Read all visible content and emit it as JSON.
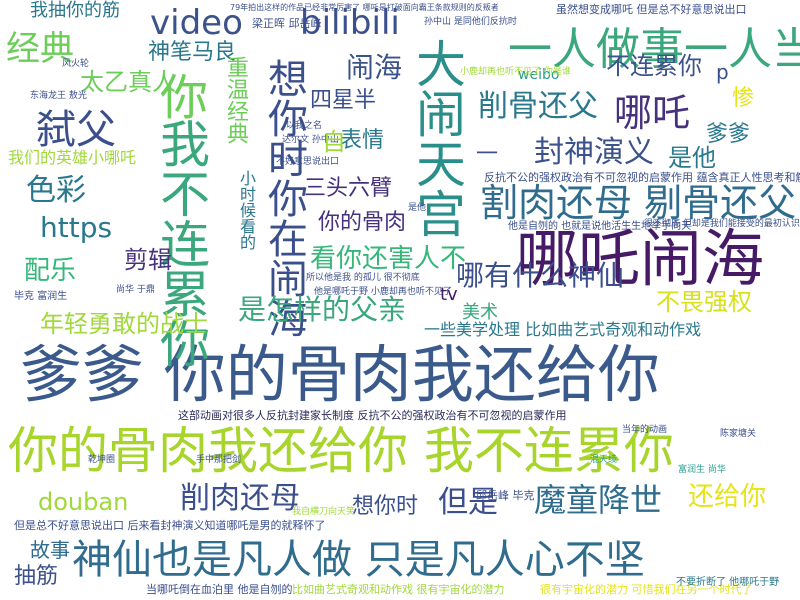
{
  "words": [
    {
      "text": "爹爹  你的骨肉我还给你",
      "color": "#3b5a8c"
    },
    {
      "text": "你的骨肉我还给你  我不连累你",
      "color": "#a8d52c"
    },
    {
      "text": "哪吒闹海",
      "color": "#461a66"
    },
    {
      "text": "大闹天宫",
      "color": "#2a8f8a"
    },
    {
      "text": "我不连累你",
      "color": "#3aa77c"
    },
    {
      "text": "神仙也是凡人做  只是凡人心不坚",
      "color": "#2f6c8e"
    },
    {
      "text": "想你时你在闹海",
      "color": "#3b4f8c"
    },
    {
      "text": "一人做事一人当",
      "color": "#3aa77c"
    },
    {
      "text": "割肉还母  剔骨还父",
      "color": "#2f6c8e"
    },
    {
      "text": "bilibili",
      "color": "#3b4f8c"
    },
    {
      "text": "video",
      "color": "#3b528b"
    },
    {
      "text": "哪吒",
      "color": "#46317e"
    },
    {
      "text": "弑父",
      "color": "#3b4f8c"
    },
    {
      "text": "经典",
      "color": "#6ccd59"
    },
    {
      "text": "你",
      "color": "#6ccd59"
    },
    {
      "text": "削骨还父",
      "color": "#2a788e"
    },
    {
      "text": "封神演义",
      "color": "#3b528b"
    },
    {
      "text": "魔童降世",
      "color": "#2f6c8e"
    },
    {
      "text": "削肉还母",
      "color": "#3b4f8c"
    },
    {
      "text": "是怎样的父亲",
      "color": "#3aa77c"
    },
    {
      "text": "年轻勇敢的战士",
      "color": "#a0d93a"
    },
    {
      "text": "看你还害人不",
      "color": "#35b779"
    },
    {
      "text": "哪有什么神仙",
      "color": "#3b4f8c"
    },
    {
      "text": "不畏强权",
      "color": "#d7e219"
    },
    {
      "text": "还给你",
      "color": "#e6e418"
    },
    {
      "text": "色彩",
      "color": "#2a788e"
    },
    {
      "text": "https",
      "color": "#2a788e"
    },
    {
      "text": "配乐",
      "color": "#35b779"
    },
    {
      "text": "剪辑",
      "color": "#46317e"
    },
    {
      "text": "神笔马良",
      "color": "#2a788e"
    },
    {
      "text": "太乙真人",
      "color": "#6ccd59"
    },
    {
      "text": "闹海",
      "color": "#3b528b"
    },
    {
      "text": "不连累你",
      "color": "#3b528b"
    },
    {
      "text": "四星半",
      "color": "#3b4f8c"
    },
    {
      "text": "表情",
      "color": "#2a788e"
    },
    {
      "text": "三头六臂",
      "color": "#46317e"
    },
    {
      "text": "你的骨肉",
      "color": "#46317e"
    },
    {
      "text": "是他",
      "color": "#2a788e"
    },
    {
      "text": "爹爹",
      "color": "#2a788e"
    },
    {
      "text": "惨",
      "color": "#e6e418"
    },
    {
      "text": "想你时",
      "color": "#3b4f8c"
    },
    {
      "text": "但是",
      "color": "#3b4f8c"
    },
    {
      "text": "douban",
      "color": "#a0d93a"
    },
    {
      "text": "故事",
      "color": "#2f6c8e"
    },
    {
      "text": "抽筋",
      "color": "#3b528b"
    },
    {
      "text": "我们的英雄小哪吒",
      "color": "#a0d93a"
    },
    {
      "text": "我抽你的筋",
      "color": "#2a788e"
    },
    {
      "text": "重温经典",
      "color": "#6ccd59"
    },
    {
      "text": "小时候看的",
      "color": "#2a788e"
    },
    {
      "text": "weibo",
      "color": "#2a9d8f"
    },
    {
      "text": "美术",
      "color": "#3aa77c"
    },
    {
      "text": "tv",
      "color": "#461a66"
    },
    {
      "text": "一些美学处理  比如曲艺式奇观和动作戏",
      "color": "#2a788e"
    },
    {
      "text": "这部动画对很多人反抗封建家长制度  反抗不公的强权政治有不可忽视的启蒙作用",
      "color": "#2a2a5a"
    },
    {
      "text": "反抗不公的强权政治有不可忽视的启蒙作用  蕴含真正人性思考和解放意义",
      "color": "#3b4f8c"
    },
    {
      "text": "虽然想变成哪吒  但是总不好意思说出口",
      "color": "#3b4f8c"
    },
    {
      "text": "79年拍出这样的作品已经非常厉害了  哪吒是打破面向霸王条款规则的反叛者",
      "color": "#3b4f8c"
    },
    {
      "text": "但是总不好意思说出口  后来看封神演义知道哪吒是男的就释怀了",
      "color": "#3b4f8c"
    },
    {
      "text": "当哪吒倒在血泊里  他是自刎的",
      "color": "#3b4f8c"
    },
    {
      "text": "比如曲艺式奇观和动作戏  很有宇宙化的潜力",
      "color": "#a0d93a"
    },
    {
      "text": "很有宇宙化的潜力  可惜我们在另一个时代了",
      "color": "#e6e418"
    },
    {
      "text": "他是自刎的  也就是说他活生生地举手向天",
      "color": "#3b4f8c"
    },
    {
      "text": "梁正晖  邱岳峰",
      "color": "#3b4f8c"
    },
    {
      "text": "邱岳峰  毕克",
      "color": "#3b4f8c"
    },
    {
      "text": "毕克  富润生",
      "color": "#3b4f8c"
    },
    {
      "text": "富润生  尚华",
      "color": "#2a9d8f"
    },
    {
      "text": "尚华  于鼎",
      "color": "#3b4f8c"
    },
    {
      "text": "他是哪吒于野  小鹿却再也听不见了",
      "color": "#3b4f8c"
    },
    {
      "text": "所以他是我   的孤儿  很不彻底",
      "color": "#3b4f8c"
    },
    {
      "text": "小鹿却再也听不见了  你是谁",
      "color": "#a0d93a"
    },
    {
      "text": "不要折断了  他哪吒于野",
      "color": "#2a788e"
    },
    {
      "text": "达尔文  孙中山",
      "color": "#3b4f8c"
    },
    {
      "text": "孙中山  是同他们反抗时",
      "color": "#3b4f8c"
    },
    {
      "text": "不好意思说出口",
      "color": "#3b4f8c"
    },
    {
      "text": "东海龙王  敖光",
      "color": "#3b4f8c"
    },
    {
      "text": "很不彻底  但却是我们能接受的最初认识",
      "color": "#3b4f8c"
    },
    {
      "text": "以我之名",
      "color": "#3b4f8c"
    },
    {
      "text": "我自横刀向天笑",
      "color": "#a0d93a"
    },
    {
      "text": "是他",
      "color": "#3b4f8c"
    },
    {
      "text": "风火轮",
      "color": "#3b4f8c"
    },
    {
      "text": "乾坤圈",
      "color": "#3b4f8c"
    },
    {
      "text": "混天绫",
      "color": "#2a9d8f"
    },
    {
      "text": "手中那把剑",
      "color": "#3b4f8c"
    },
    {
      "text": "陈家塘关",
      "color": "#3b4f8c"
    },
    {
      "text": "当年的动画",
      "color": "#3b4f8c"
    },
    {
      "text": "p",
      "color": "#3b4f8c"
    },
    {
      "text": "自",
      "color": "#a0d93a"
    },
    {
      "text": "一",
      "color": "#3b4f8c"
    }
  ]
}
